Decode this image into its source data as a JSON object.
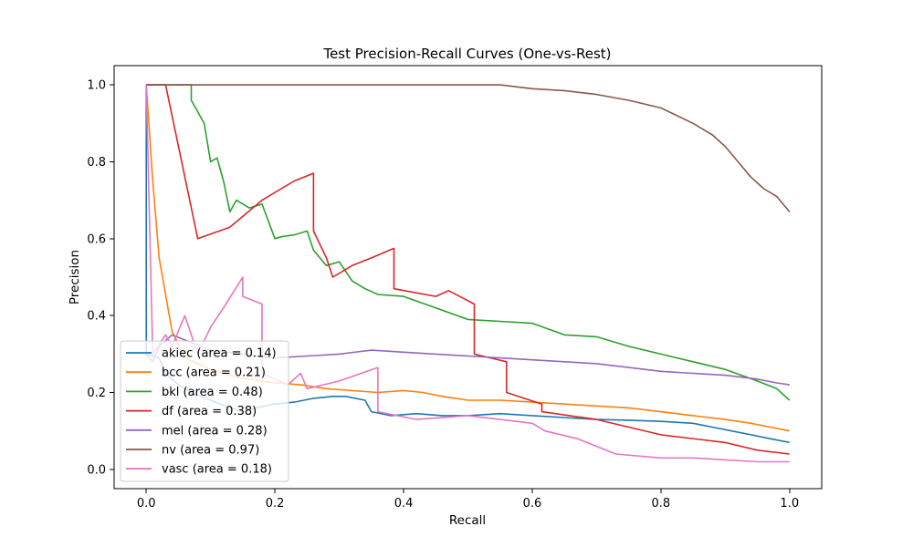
{
  "chart_data": {
    "type": "line",
    "title": "Test Precision-Recall Curves (One-vs-Rest)",
    "xlabel": "Recall",
    "ylabel": "Precision",
    "xlim": [
      -0.05,
      1.05
    ],
    "ylim": [
      -0.05,
      1.05
    ],
    "xticks": [
      "0.0",
      "0.2",
      "0.4",
      "0.6",
      "0.8",
      "1.0"
    ],
    "yticks": [
      "0.0",
      "0.2",
      "0.4",
      "0.6",
      "0.8",
      "1.0"
    ],
    "grid": false,
    "legend_position": "lower-left",
    "series": [
      {
        "name": "akiec (area = 0.14)",
        "color": "#1f77b4",
        "x": [
          0.0,
          0.0,
          0.02,
          0.03,
          0.05,
          0.07,
          0.1,
          0.13,
          0.15,
          0.17,
          0.2,
          0.23,
          0.26,
          0.29,
          0.31,
          0.34,
          0.35,
          0.38,
          0.42,
          0.46,
          0.5,
          0.55,
          0.6,
          0.65,
          0.7,
          0.75,
          0.8,
          0.85,
          0.88,
          0.91,
          0.94,
          0.97,
          1.0
        ],
        "y": [
          1.0,
          0.3,
          0.29,
          0.25,
          0.22,
          0.2,
          0.18,
          0.16,
          0.15,
          0.16,
          0.17,
          0.175,
          0.185,
          0.19,
          0.19,
          0.18,
          0.15,
          0.14,
          0.145,
          0.14,
          0.14,
          0.145,
          0.14,
          0.135,
          0.13,
          0.128,
          0.125,
          0.12,
          0.11,
          0.1,
          0.09,
          0.08,
          0.07
        ]
      },
      {
        "name": "bcc (area = 0.21)",
        "color": "#ff7f0e",
        "x": [
          0.0,
          0.01,
          0.02,
          0.04,
          0.06,
          0.1,
          0.14,
          0.2,
          0.24,
          0.28,
          0.32,
          0.36,
          0.4,
          0.43,
          0.46,
          0.5,
          0.55,
          0.6,
          0.65,
          0.7,
          0.75,
          0.8,
          0.85,
          0.9,
          0.94,
          0.97,
          1.0
        ],
        "y": [
          1.0,
          0.75,
          0.55,
          0.36,
          0.29,
          0.26,
          0.24,
          0.225,
          0.22,
          0.21,
          0.205,
          0.2,
          0.205,
          0.2,
          0.19,
          0.18,
          0.18,
          0.175,
          0.17,
          0.165,
          0.16,
          0.15,
          0.14,
          0.13,
          0.12,
          0.11,
          0.1
        ]
      },
      {
        "name": "bkl (area = 0.48)",
        "color": "#2ca02c",
        "x": [
          0.0,
          0.07,
          0.07,
          0.08,
          0.09,
          0.1,
          0.11,
          0.12,
          0.13,
          0.14,
          0.16,
          0.18,
          0.2,
          0.21,
          0.23,
          0.25,
          0.26,
          0.28,
          0.3,
          0.32,
          0.34,
          0.36,
          0.4,
          0.45,
          0.5,
          0.55,
          0.6,
          0.65,
          0.7,
          0.75,
          0.8,
          0.85,
          0.9,
          0.95,
          0.98,
          1.0
        ],
        "y": [
          1.0,
          1.0,
          0.96,
          0.93,
          0.9,
          0.8,
          0.81,
          0.75,
          0.67,
          0.7,
          0.68,
          0.69,
          0.6,
          0.605,
          0.61,
          0.62,
          0.57,
          0.53,
          0.54,
          0.49,
          0.47,
          0.455,
          0.45,
          0.42,
          0.39,
          0.385,
          0.38,
          0.35,
          0.345,
          0.32,
          0.3,
          0.28,
          0.26,
          0.23,
          0.21,
          0.18
        ]
      },
      {
        "name": "df (area = 0.38)",
        "color": "#d62728",
        "x": [
          0.0,
          0.03,
          0.08,
          0.13,
          0.18,
          0.23,
          0.26,
          0.26,
          0.28,
          0.29,
          0.32,
          0.35,
          0.385,
          0.385,
          0.45,
          0.47,
          0.51,
          0.51,
          0.56,
          0.56,
          0.615,
          0.615,
          0.7,
          0.8,
          0.9,
          0.95,
          1.0
        ],
        "y": [
          1.0,
          1.0,
          0.6,
          0.63,
          0.7,
          0.75,
          0.77,
          0.62,
          0.55,
          0.5,
          0.53,
          0.55,
          0.575,
          0.47,
          0.45,
          0.465,
          0.43,
          0.3,
          0.28,
          0.2,
          0.17,
          0.15,
          0.13,
          0.09,
          0.07,
          0.05,
          0.04
        ]
      },
      {
        "name": "mel (area = 0.28)",
        "color": "#9467bd",
        "x": [
          0.0,
          0.01,
          0.02,
          0.04,
          0.07,
          0.1,
          0.15,
          0.2,
          0.25,
          0.3,
          0.35,
          0.4,
          0.45,
          0.5,
          0.55,
          0.6,
          0.65,
          0.7,
          0.75,
          0.8,
          0.85,
          0.9,
          0.95,
          0.98,
          1.0
        ],
        "y": [
          0.3,
          0.28,
          0.32,
          0.35,
          0.33,
          0.31,
          0.3,
          0.29,
          0.295,
          0.3,
          0.31,
          0.305,
          0.3,
          0.295,
          0.29,
          0.285,
          0.28,
          0.275,
          0.265,
          0.255,
          0.25,
          0.245,
          0.235,
          0.225,
          0.22
        ]
      },
      {
        "name": "nv (area = 0.97)",
        "color": "#8c564b",
        "x": [
          0.0,
          0.55,
          0.6,
          0.65,
          0.7,
          0.75,
          0.8,
          0.85,
          0.88,
          0.9,
          0.92,
          0.94,
          0.96,
          0.98,
          0.99,
          1.0
        ],
        "y": [
          1.0,
          1.0,
          0.99,
          0.985,
          0.975,
          0.96,
          0.94,
          0.9,
          0.87,
          0.84,
          0.8,
          0.76,
          0.73,
          0.71,
          0.69,
          0.67
        ]
      },
      {
        "name": "vasc (area = 0.18)",
        "color": "#e377c2",
        "x": [
          0.0,
          0.01,
          0.03,
          0.04,
          0.06,
          0.08,
          0.1,
          0.12,
          0.15,
          0.15,
          0.18,
          0.18,
          0.22,
          0.24,
          0.25,
          0.3,
          0.36,
          0.36,
          0.42,
          0.5,
          0.55,
          0.6,
          0.62,
          0.67,
          0.73,
          0.8,
          0.85,
          0.9,
          0.95,
          1.0
        ],
        "y": [
          1.0,
          0.3,
          0.35,
          0.32,
          0.4,
          0.3,
          0.37,
          0.42,
          0.5,
          0.45,
          0.43,
          0.25,
          0.22,
          0.25,
          0.21,
          0.23,
          0.265,
          0.15,
          0.13,
          0.14,
          0.13,
          0.12,
          0.1,
          0.08,
          0.04,
          0.03,
          0.03,
          0.025,
          0.02,
          0.02
        ]
      }
    ]
  }
}
